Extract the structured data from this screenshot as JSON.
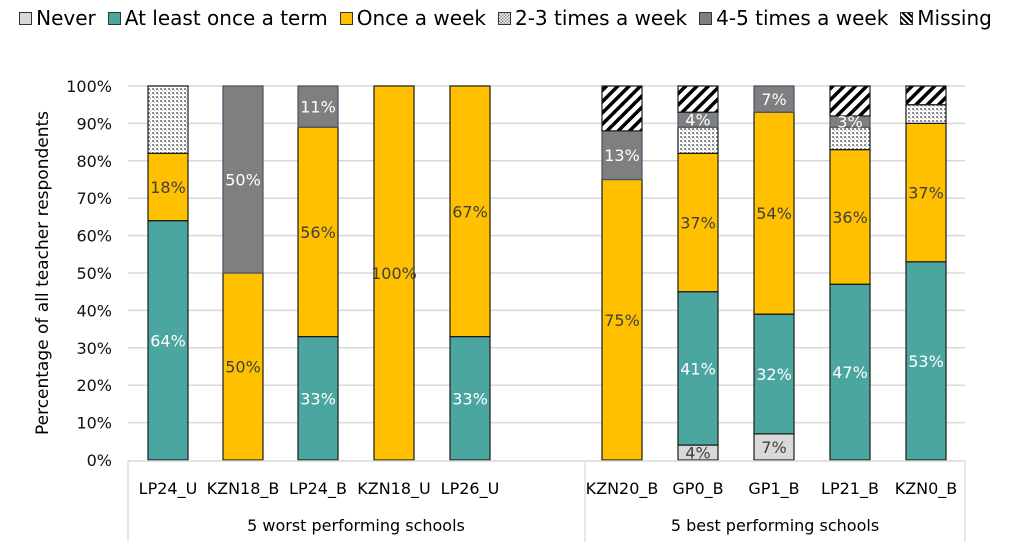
{
  "chart_data": {
    "type": "bar",
    "stacked": true,
    "title": "",
    "xlabel": "",
    "ylabel": "Percentage of all teacher respondents",
    "ylim": [
      0,
      100
    ],
    "yticks": [
      "0%",
      "10%",
      "20%",
      "30%",
      "40%",
      "50%",
      "60%",
      "70%",
      "80%",
      "90%",
      "100%"
    ],
    "grid": true,
    "legend_position": "top",
    "groups": [
      {
        "label": "5 worst performing schools",
        "categories": [
          "LP24_U",
          "KZN18_B",
          "LP24_B",
          "KZN18_U",
          "LP26_U"
        ]
      },
      {
        "label": "5 best performing schools",
        "categories": [
          "KZN20_B",
          "GP0_B",
          "GP1_B",
          "LP21_B",
          "KZN0_B"
        ]
      }
    ],
    "categories": [
      "LP24_U",
      "KZN18_B",
      "LP24_B",
      "KZN18_U",
      "LP26_U",
      "KZN20_B",
      "GP0_B",
      "GP1_B",
      "LP21_B",
      "KZN0_B"
    ],
    "series": [
      {
        "name": "Never",
        "color": "#d9d9d9",
        "pattern": "solid",
        "label_color": "#404040",
        "values": [
          0,
          0,
          0,
          0,
          0,
          0,
          4,
          7,
          0,
          0
        ],
        "labels": [
          "",
          "",
          "",
          "",
          "",
          "",
          "4%",
          "7%",
          "",
          ""
        ]
      },
      {
        "name": "At least once a term",
        "color": "#4ba69f",
        "pattern": "solid",
        "label_color": "#ffffff",
        "values": [
          64,
          0,
          33,
          0,
          33,
          0,
          41,
          32,
          47,
          53
        ],
        "labels": [
          "64%",
          "",
          "33%",
          "",
          "33%",
          "",
          "41%",
          "32%",
          "47%",
          "53%"
        ]
      },
      {
        "name": "Once a week",
        "color": "#ffc000",
        "pattern": "solid",
        "label_color": "#404040",
        "values": [
          18,
          50,
          56,
          100,
          67,
          75,
          37,
          54,
          36,
          37
        ],
        "labels": [
          "18%",
          "50%",
          "56%",
          "100%",
          "67%",
          "75%",
          "37%",
          "54%",
          "36%",
          "37%"
        ]
      },
      {
        "name": "2-3 times a week",
        "color": "#bfbfbf",
        "pattern": "dots",
        "label_color": "#404040",
        "values": [
          18,
          0,
          0,
          0,
          0,
          0,
          7,
          0,
          6,
          5
        ],
        "labels": [
          "",
          "",
          "",
          "",
          "",
          "",
          "",
          "",
          "",
          ""
        ]
      },
      {
        "name": "4-5 times a week",
        "color": "#7f7f7f",
        "pattern": "solid",
        "label_color": "#ffffff",
        "values": [
          0,
          50,
          11,
          0,
          0,
          13,
          4,
          7,
          3,
          0
        ],
        "labels": [
          "",
          "50%",
          "11%",
          "",
          "",
          "13%",
          "4%",
          "7%",
          "3%",
          ""
        ]
      },
      {
        "name": "Missing",
        "color": "#ffffff",
        "pattern": "diagonal",
        "label_color": "#404040",
        "values": [
          0,
          0,
          0,
          0,
          0,
          12,
          7,
          0,
          8,
          5
        ],
        "labels": [
          "",
          "",
          "",
          "",
          "",
          "",
          "",
          "",
          "",
          ""
        ]
      }
    ]
  }
}
